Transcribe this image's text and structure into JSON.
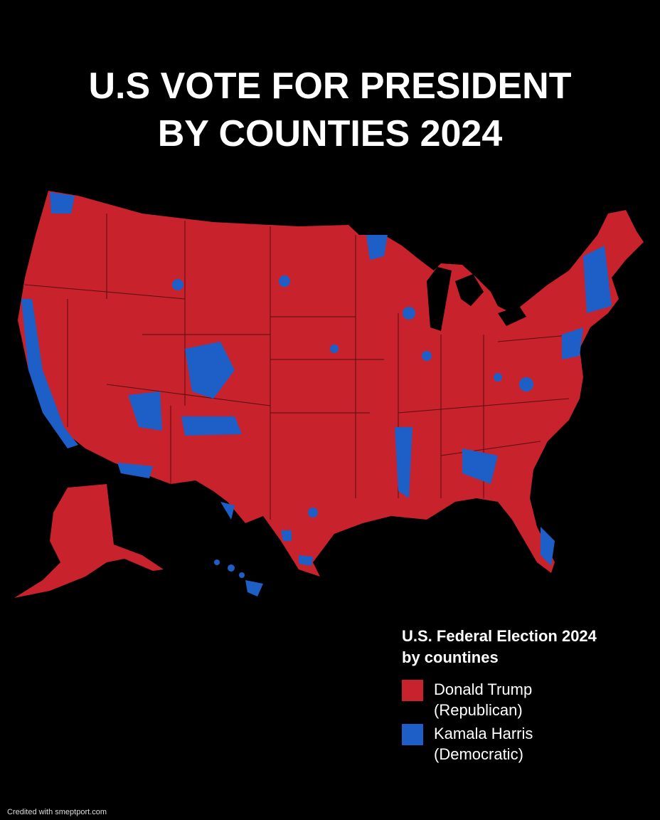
{
  "header": {
    "title": [
      "U.S VOTE FOR PRESIDENT",
      "BY COUNTIES 2024"
    ]
  },
  "legend": {
    "title": [
      "U.S. Federal Election 2024",
      "by countines"
    ],
    "items": [
      {
        "label": [
          "Donald Trump",
          "(Republican)"
        ],
        "color": "#c8222c"
      },
      {
        "label": [
          "Kamala Harris",
          "(Democratic)"
        ],
        "color": "#1d5fc6"
      }
    ]
  },
  "credit": "Credited with smeptport.com"
}
